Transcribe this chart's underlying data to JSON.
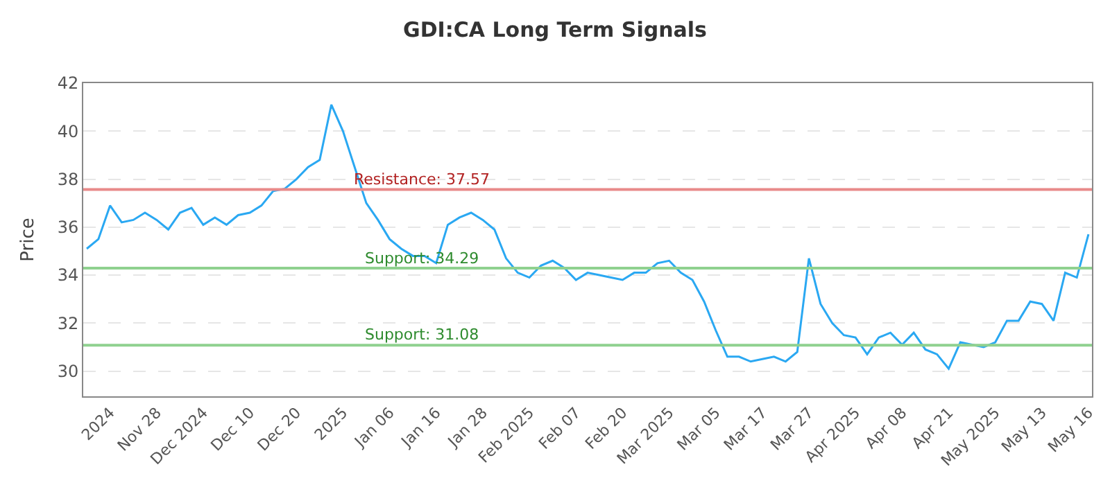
{
  "chart_data": {
    "type": "line",
    "title": "GDI:CA Long Term Signals",
    "ylabel": "Price",
    "categories": [
      null,
      null,
      "2024",
      null,
      null,
      null,
      "Nov 28",
      null,
      null,
      null,
      "Dec 2024",
      null,
      null,
      null,
      "Dec 10",
      null,
      null,
      null,
      "Dec 20",
      null,
      null,
      null,
      "2025",
      null,
      null,
      null,
      "Jan 06",
      null,
      null,
      null,
      "Jan 16",
      null,
      null,
      null,
      "Jan 28",
      null,
      null,
      null,
      "Feb 2025",
      null,
      null,
      null,
      "Feb 07",
      null,
      null,
      null,
      "Feb 20",
      null,
      null,
      null,
      "Mar 2025",
      null,
      null,
      null,
      "Mar 05",
      null,
      null,
      null,
      "Mar 17",
      null,
      null,
      null,
      "Mar 27",
      null,
      null,
      null,
      "Apr 2025",
      null,
      null,
      null,
      "Apr 08",
      null,
      null,
      null,
      "Apr 21",
      null,
      null,
      null,
      "May 2025",
      null,
      null,
      null,
      "May 13",
      null,
      null,
      null,
      "May 16"
    ],
    "series": [
      {
        "color": "#2aa8f2",
        "values": [
          35.1,
          35.5,
          36.9,
          36.2,
          36.3,
          36.6,
          36.3,
          35.9,
          36.6,
          36.8,
          36.1,
          36.4,
          36.1,
          36.5,
          36.6,
          36.9,
          37.5,
          37.6,
          38.0,
          38.5,
          38.8,
          41.1,
          40.0,
          38.5,
          37.0,
          36.3,
          35.5,
          35.1,
          34.8,
          34.8,
          34.5,
          36.1,
          36.4,
          36.6,
          36.3,
          35.9,
          34.7,
          34.1,
          33.9,
          34.4,
          34.6,
          34.3,
          33.8,
          34.1,
          34.0,
          33.9,
          33.8,
          34.1,
          34.1,
          34.5,
          34.6,
          34.1,
          33.8,
          32.9,
          31.7,
          30.6,
          30.6,
          30.4,
          30.5,
          30.6,
          30.4,
          30.8,
          34.7,
          32.8,
          32.0,
          31.5,
          31.4,
          30.7,
          31.4,
          31.6,
          31.1,
          31.6,
          30.9,
          30.7,
          30.1,
          31.2,
          31.1,
          31.0,
          31.2,
          32.1,
          32.1,
          32.9,
          32.8,
          32.1,
          34.1,
          33.9,
          35.7
        ]
      }
    ],
    "ylim": [
      28.95,
      42
    ],
    "yticks": [
      30,
      32,
      34,
      36,
      38,
      40,
      42
    ],
    "ref_lines": [
      {
        "axis": "y",
        "value": 37.57,
        "label": "Resistance: 37.57",
        "color": "#e88a8a"
      },
      {
        "axis": "y",
        "value": 34.29,
        "label": "Support: 34.29",
        "color": "#8fd18f"
      },
      {
        "axis": "y",
        "value": 31.08,
        "label": "Support: 31.08",
        "color": "#8fd18f"
      }
    ],
    "grid": "y",
    "marker": "none",
    "line_style": "solid"
  }
}
